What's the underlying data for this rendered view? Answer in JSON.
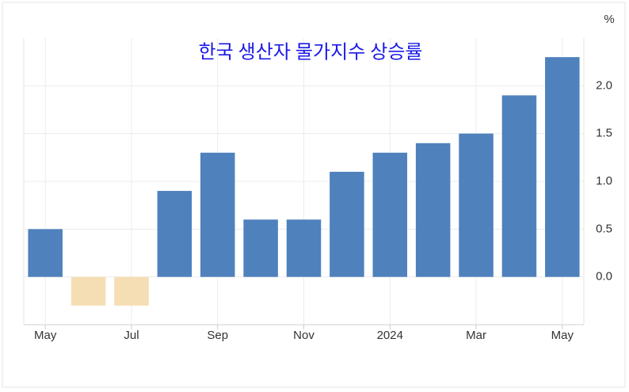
{
  "chart_data": {
    "type": "bar",
    "title": "한국 생산자 물가지수 상승률",
    "unit": "%",
    "categories": [
      "May",
      null,
      "Jul",
      null,
      "Sep",
      null,
      "Nov",
      null,
      "2024",
      null,
      "Mar",
      null,
      "May"
    ],
    "values": [
      0.5,
      -0.3,
      -0.3,
      0.9,
      1.3,
      0.6,
      0.6,
      1.1,
      1.3,
      1.4,
      1.5,
      1.9,
      2.3
    ],
    "color": "#4f81bd",
    "negative_color": "#f5deb3",
    "ylim": [
      -0.5,
      2.5
    ],
    "yticks": [
      {
        "value": 0,
        "label": "0.0"
      },
      0.5,
      {
        "value": 1,
        "label": "1.0"
      },
      1.5,
      {
        "value": 2,
        "label": "2.0"
      }
    ],
    "grid": true
  }
}
